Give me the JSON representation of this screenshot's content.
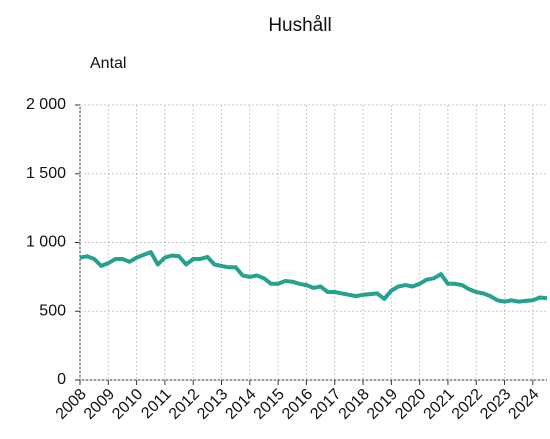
{
  "chart_data": {
    "type": "line",
    "title": "Hushåll",
    "ylabel": "Antal",
    "x": [
      2008,
      2008.25,
      2008.5,
      2008.75,
      2009,
      2009.25,
      2009.5,
      2009.75,
      2010,
      2010.25,
      2010.5,
      2010.75,
      2011,
      2011.25,
      2011.5,
      2011.75,
      2012,
      2012.25,
      2012.5,
      2012.75,
      2013,
      2013.25,
      2013.5,
      2013.75,
      2014,
      2014.25,
      2014.5,
      2014.75,
      2015,
      2015.25,
      2015.5,
      2015.75,
      2016,
      2016.25,
      2016.5,
      2016.75,
      2017,
      2017.25,
      2017.5,
      2017.75,
      2018,
      2018.25,
      2018.5,
      2018.75,
      2019,
      2019.25,
      2019.5,
      2019.75,
      2020,
      2020.25,
      2020.5,
      2020.75,
      2021,
      2021.25,
      2021.5,
      2021.75,
      2022,
      2022.25,
      2022.5,
      2022.75,
      2023,
      2023.25,
      2023.5,
      2023.75,
      2024,
      2024.25,
      2024.5
    ],
    "values": [
      890,
      900,
      880,
      830,
      850,
      880,
      880,
      860,
      890,
      910,
      930,
      840,
      890,
      905,
      900,
      840,
      880,
      880,
      895,
      840,
      830,
      820,
      820,
      760,
      750,
      760,
      740,
      700,
      700,
      720,
      715,
      700,
      690,
      670,
      680,
      640,
      640,
      630,
      620,
      610,
      620,
      625,
      630,
      590,
      650,
      680,
      690,
      680,
      700,
      730,
      740,
      770,
      700,
      700,
      690,
      660,
      640,
      630,
      610,
      580,
      570,
      580,
      570,
      575,
      580,
      600,
      595
    ],
    "color": "#26a08f",
    "xlim": [
      2008,
      2024.5
    ],
    "xticks": [
      2008,
      2009,
      2010,
      2011,
      2012,
      2013,
      2014,
      2015,
      2016,
      2017,
      2018,
      2019,
      2020,
      2021,
      2022,
      2023,
      2024
    ],
    "ylim": [
      0,
      2000
    ],
    "yticks": [
      0,
      500,
      {
        "value": 1000,
        "label": "1 000"
      },
      {
        "value": 1500,
        "label": "1 500"
      },
      {
        "value": 2000,
        "label": "2 000"
      }
    ],
    "grid": true
  }
}
